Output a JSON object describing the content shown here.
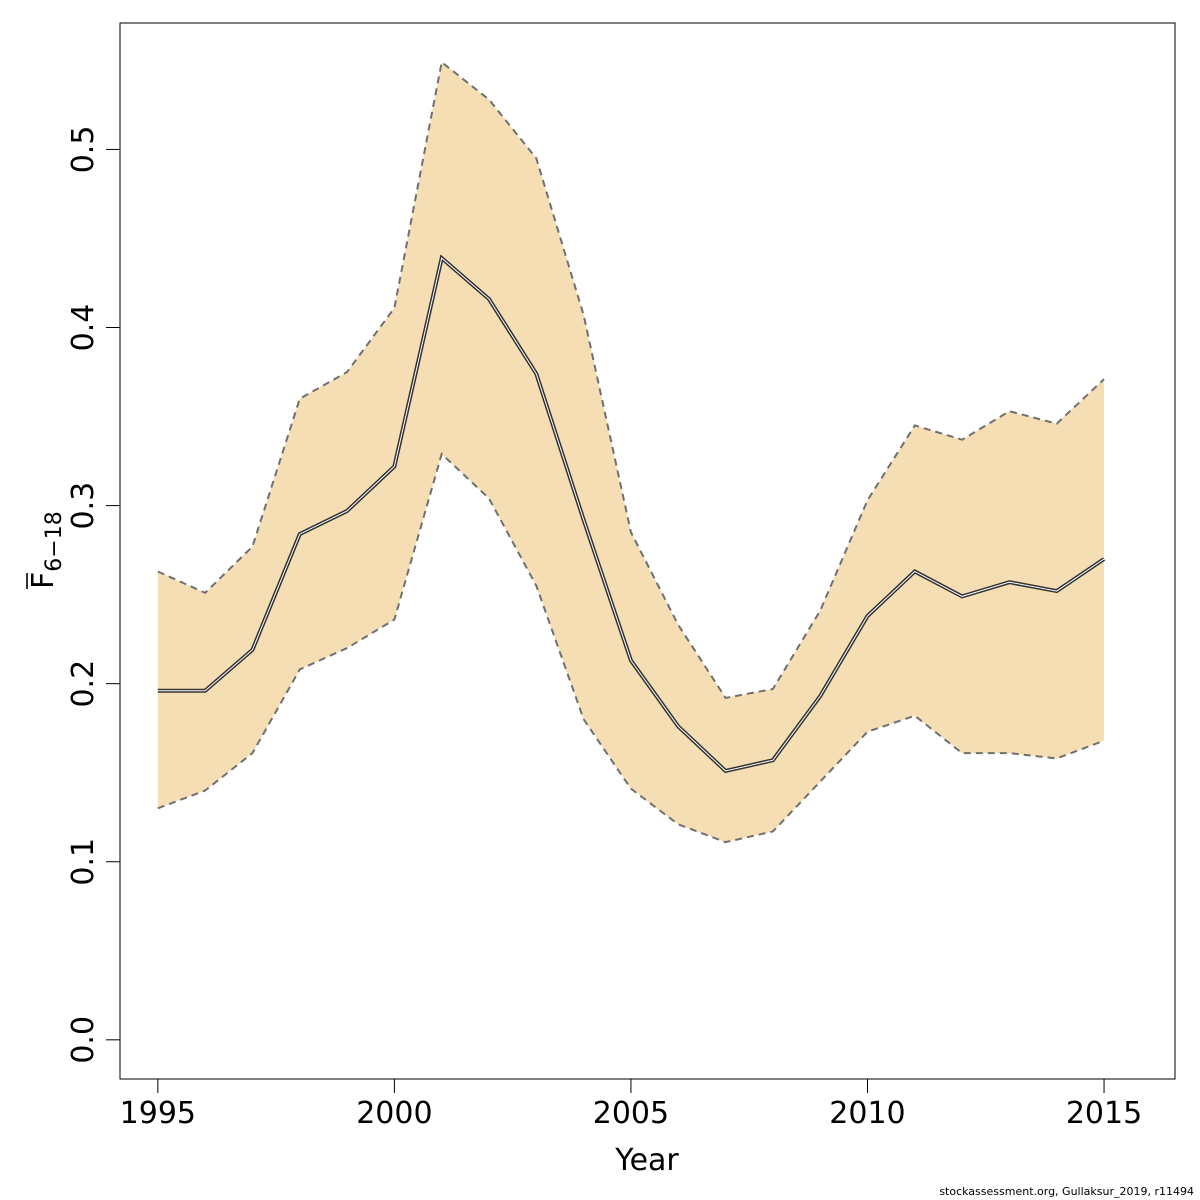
{
  "chart_data": {
    "type": "line",
    "x": [
      1995,
      1996,
      1997,
      1998,
      1999,
      2000,
      2001,
      2002,
      2003,
      2004,
      2005,
      2006,
      2007,
      2008,
      2009,
      2010,
      2011,
      2012,
      2013,
      2014,
      2015
    ],
    "series": [
      {
        "values": [
          0.196,
          0.196,
          0.219,
          0.284,
          0.297,
          0.322,
          0.439,
          0.416,
          0.374,
          0.292,
          0.213,
          0.176,
          0.151,
          0.157,
          0.193,
          0.238,
          0.263,
          0.249,
          0.257,
          0.252,
          0.27
        ]
      },
      {
        "values": [
          0.263,
          0.251,
          0.277,
          0.36,
          0.375,
          0.411,
          0.549,
          0.528,
          0.495,
          0.407,
          0.285,
          0.233,
          0.192,
          0.197,
          0.241,
          0.303,
          0.345,
          0.337,
          0.353,
          0.346,
          0.371
        ]
      },
      {
        "values": [
          0.13,
          0.14,
          0.161,
          0.208,
          0.22,
          0.236,
          0.329,
          0.304,
          0.255,
          0.18,
          0.141,
          0.121,
          0.111,
          0.117,
          0.145,
          0.173,
          0.182,
          0.161,
          0.161,
          0.158,
          0.168
        ]
      }
    ],
    "xlabel": "Year",
    "ylabel_main": "F",
    "ylabel_sub": "6−18",
    "xticks": [
      "1995",
      "2000",
      "2005",
      "2010",
      "2015"
    ],
    "yticks": [
      "0.0",
      "0.1",
      "0.2",
      "0.3",
      "0.4",
      "0.5"
    ],
    "xlim": [
      1994.2,
      2016.5
    ],
    "ylim": [
      -0.022,
      0.571
    ],
    "band_color": "#f5deb3",
    "line_color": "#333333",
    "band_edge_color": "#707070",
    "grid": false
  },
  "credit": "stockassessment.org, Gullaksur_2019, r11494"
}
